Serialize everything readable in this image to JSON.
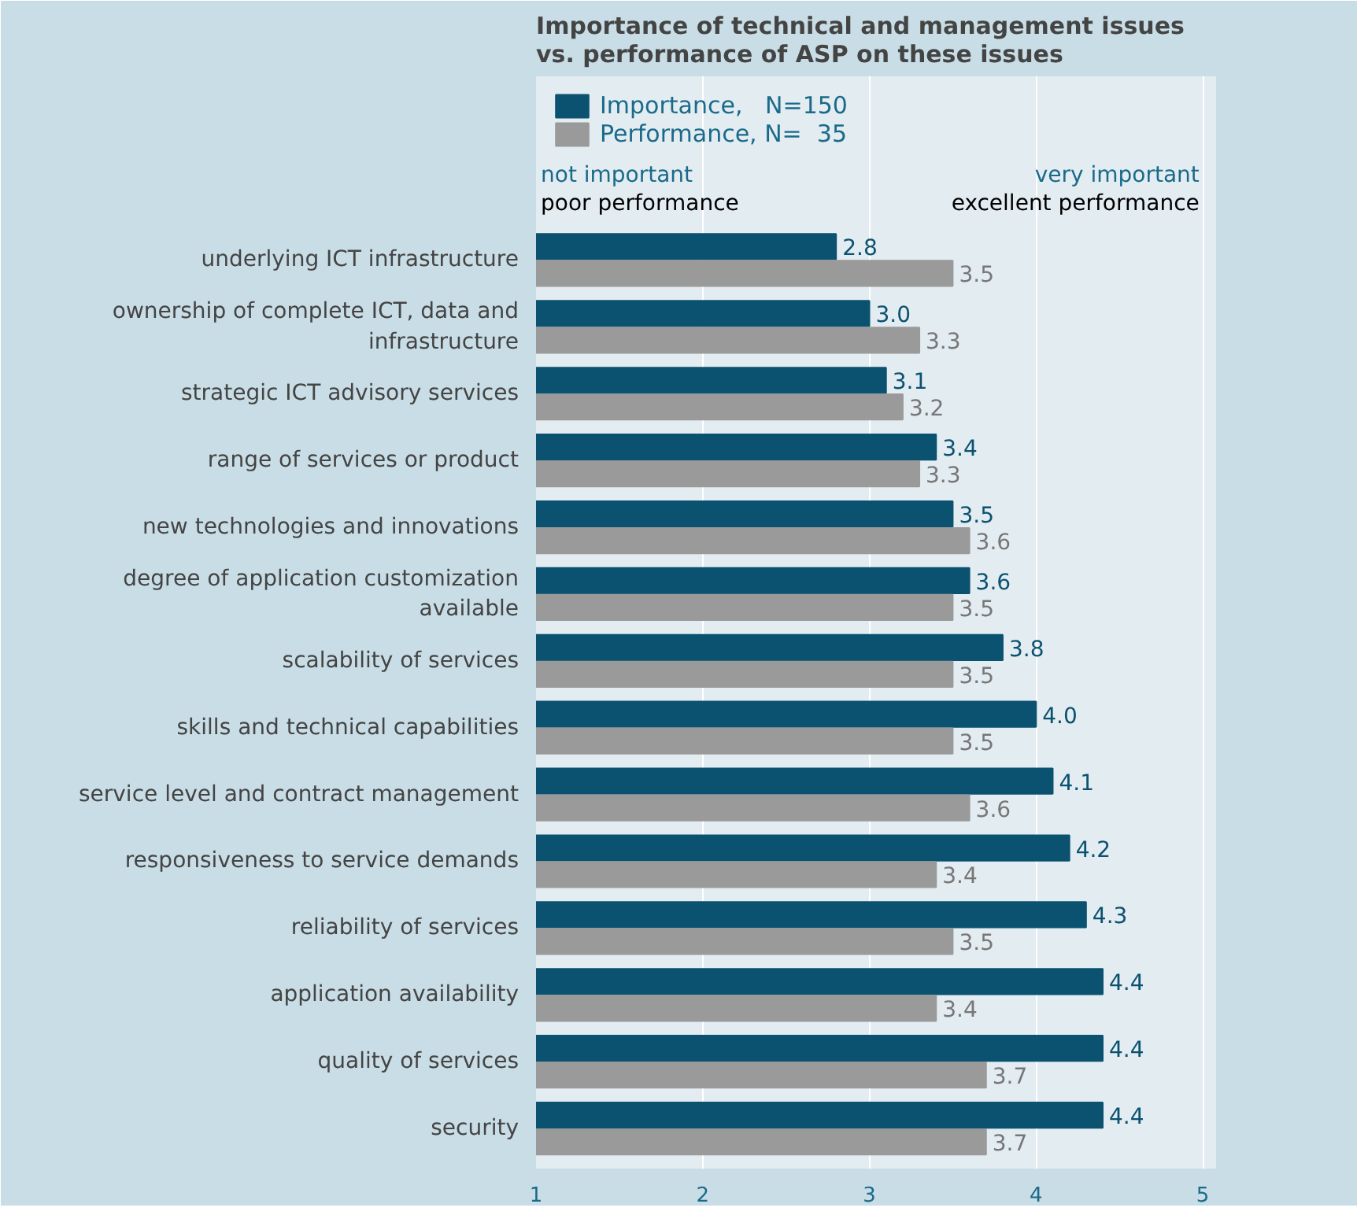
{
  "chart_data": {
    "type": "bar",
    "orientation": "horizontal",
    "title": "Importance of technical and management issues\nvs. performance of ASP on these issues",
    "categories": [
      "underlying ICT infrastructure",
      "ownership of complete ICT, data and infrastructure",
      "strategic ICT advisory services",
      "range of services or product",
      "new technologies and innovations",
      "degree of application customization available",
      "scalability of services",
      "skills and technical capabilities",
      "service level and contract management",
      "responsiveness to service demands",
      "reliability of services",
      "application availability",
      "quality of services",
      "security"
    ],
    "series": [
      {
        "name": "Importance,   N=150",
        "color": "#0b5270",
        "values": [
          2.8,
          3.0,
          3.1,
          3.4,
          3.5,
          3.6,
          3.8,
          4.0,
          4.1,
          4.2,
          4.3,
          4.4,
          4.4,
          4.4
        ],
        "value_labels": [
          "2.8",
          "3.0",
          "3.1",
          "3.4",
          "3.5",
          "3.6",
          "3.8",
          "4.0",
          "4.1",
          "4.2",
          "4.3",
          "4.4",
          "4.4",
          "4.4"
        ]
      },
      {
        "name": "Performance, N=  35",
        "color": "#9a9a9a",
        "values": [
          3.5,
          3.3,
          3.2,
          3.3,
          3.6,
          3.5,
          3.5,
          3.5,
          3.6,
          3.4,
          3.5,
          3.4,
          3.7,
          3.7
        ],
        "value_labels": [
          "3.5",
          "3.3",
          "3.2",
          "3.3",
          "3.6",
          "3.5",
          "3.5",
          "3.5",
          "3.6",
          "3.4",
          "3.5",
          "3.4",
          "3.7",
          "3.7"
        ]
      }
    ],
    "xlim": [
      1,
      5.08
    ],
    "xticks": [
      1,
      2,
      3,
      4,
      5
    ],
    "grid": "x",
    "legend": "top left",
    "annotations": [
      "not important",
      "poor performance",
      "very important",
      "excellent performance"
    ]
  }
}
